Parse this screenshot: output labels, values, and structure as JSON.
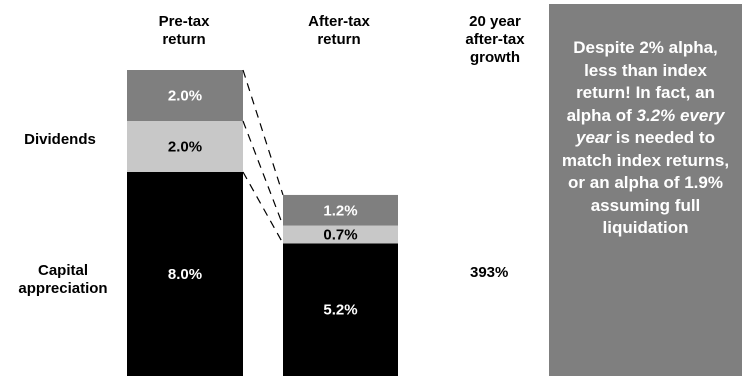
{
  "headers": {
    "pretax": [
      "Pre-tax",
      "return"
    ],
    "aftertax": [
      "After-tax",
      "return"
    ],
    "growth": [
      "20 year",
      "after-tax",
      "growth"
    ]
  },
  "row_labels": {
    "dividends": "Dividends",
    "capital": [
      "Capital",
      "appreciation"
    ]
  },
  "growth_value": "393%",
  "callout": {
    "before_emphasis": "Despite 2% alpha, less than index return! In fact, an alpha of",
    "emphasis": "3.2% every year",
    "after_emphasis": "is needed to match index returns, or an alpha of 1.9% assuming full liquidation"
  },
  "colors": {
    "top_segment": "#7f7f7f",
    "middle_segment": "#c8c8c8",
    "bottom_segment": "#000000",
    "callout_bg": "#7f7f7f"
  },
  "chart_data": {
    "type": "bar",
    "stacked": true,
    "categories": [
      "Pre-tax return",
      "After-tax return"
    ],
    "series": [
      {
        "values": [
          8.0,
          5.2
        ],
        "labels": [
          "8.0%",
          "5.2%"
        ]
      },
      {
        "values": [
          2.0,
          0.7
        ],
        "labels": [
          "2.0%",
          "0.7%"
        ]
      },
      {
        "values": [
          2.0,
          1.2
        ],
        "labels": [
          "2.0%",
          "1.2%"
        ]
      }
    ],
    "unit": "%",
    "grid": false,
    "legend": "none"
  }
}
